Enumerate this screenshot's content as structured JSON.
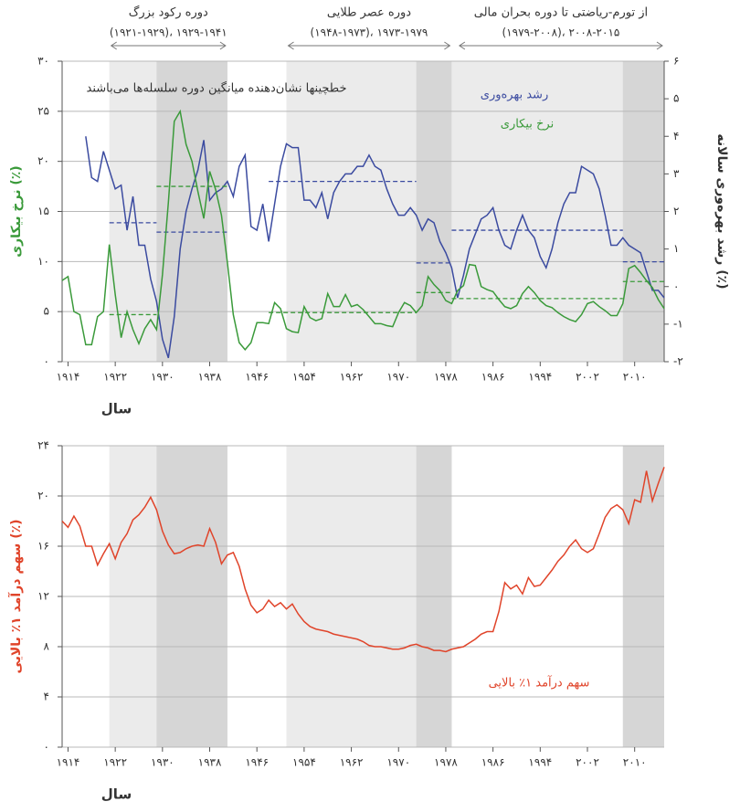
{
  "chart_data": [
    {
      "type": "line",
      "xlim": [
        1913,
        2015
      ],
      "ylim": [
        0,
        30
      ],
      "y2lim": [
        -2,
        6
      ],
      "grid": true,
      "xlabel": "سال",
      "ylabel": "نرخ بیکاری (٪)",
      "y2label": "رشد بهره‌وری سالانه (٪)",
      "note": "خطچینها نشان‌دهنده میانگین دوره سلسله‌ها می‌باشند",
      "xticks": [
        {
          "value": 1914,
          "label": "۱۹۱۴"
        },
        {
          "value": 1922,
          "label": "۱۹۲۲"
        },
        {
          "value": 1930,
          "label": "۱۹۳۰"
        },
        {
          "value": 1938,
          "label": "۱۹۳۸"
        },
        {
          "value": 1946,
          "label": "۱۹۴۶"
        },
        {
          "value": 1954,
          "label": "۱۹۵۴"
        },
        {
          "value": 1962,
          "label": "۱۹۶۲"
        },
        {
          "value": 1970,
          "label": "۱۹۷۰"
        },
        {
          "value": 1978,
          "label": "۱۹۷۸"
        },
        {
          "value": 1986,
          "label": "۱۹۸۶"
        },
        {
          "value": 1994,
          "label": "۱۹۹۴"
        },
        {
          "value": 2002,
          "label": "۲۰۰۲"
        },
        {
          "value": 2010,
          "label": "۲۰۱۰"
        }
      ],
      "yticks": [
        {
          "value": 0,
          "label": "۰"
        },
        {
          "value": 5,
          "label": "۵"
        },
        {
          "value": 10,
          "label": "۱۰"
        },
        {
          "value": 15,
          "label": "۱۵"
        },
        {
          "value": 20,
          "label": "۲۰"
        },
        {
          "value": 25,
          "label": "۲۵"
        },
        {
          "value": 30,
          "label": "۳۰"
        }
      ],
      "y2ticks": [
        {
          "value": -2,
          "label": "-۲"
        },
        {
          "value": -1,
          "label": "-۱"
        },
        {
          "value": 0,
          "label": "۰"
        },
        {
          "value": 1,
          "label": "۱"
        },
        {
          "value": 2,
          "label": "۲"
        },
        {
          "value": 3,
          "label": "۳"
        },
        {
          "value": 4,
          "label": "۴"
        },
        {
          "value": 5,
          "label": "۵"
        },
        {
          "value": 6,
          "label": "۶"
        }
      ],
      "periods": [
        {
          "label": "دوره رکود بزرگ",
          "sublabel": "(۱۹۲۱-۱۹۲۹)، ۱۹۲۹-۱۹۴۱",
          "start": 1921,
          "end": 1941
        },
        {
          "label": "دوره عصر طلایی",
          "sublabel": "(۱۹۴۸-۱۹۷۳)، ۱۹۷۳-۱۹۷۹",
          "start": 1951,
          "end": 1979
        },
        {
          "label": "از تورم-ریاضتی تا دوره بحران مالی",
          "sublabel": "(۱۹۷۹-۲۰۰۸)، ۲۰۰۸-۲۰۱۵",
          "start": 1980,
          "end": 2015
        }
      ],
      "shading": [
        {
          "start": 1921,
          "end": 1941,
          "color": "#ebebeb"
        },
        {
          "start": 1929,
          "end": 1941,
          "color": "#d6d6d6"
        },
        {
          "start": 1951,
          "end": 1979,
          "color": "#ebebeb"
        },
        {
          "start": 1973,
          "end": 1979,
          "color": "#d6d6d6"
        },
        {
          "start": 1979,
          "end": 2015,
          "color": "#ebebeb"
        },
        {
          "start": 2008,
          "end": 2015,
          "color": "#d6d6d6"
        }
      ],
      "x": [
        1913,
        1914,
        1915,
        1916,
        1917,
        1918,
        1919,
        1920,
        1921,
        1922,
        1923,
        1924,
        1925,
        1926,
        1927,
        1928,
        1929,
        1930,
        1931,
        1932,
        1933,
        1934,
        1935,
        1936,
        1937,
        1938,
        1939,
        1940,
        1941,
        1942,
        1943,
        1944,
        1945,
        1946,
        1947,
        1948,
        1949,
        1950,
        1951,
        1952,
        1953,
        1954,
        1955,
        1956,
        1957,
        1958,
        1959,
        1960,
        1961,
        1962,
        1963,
        1964,
        1965,
        1966,
        1967,
        1968,
        1969,
        1970,
        1971,
        1972,
        1973,
        1974,
        1975,
        1976,
        1977,
        1978,
        1979,
        1980,
        1981,
        1982,
        1983,
        1984,
        1985,
        1986,
        1987,
        1988,
        1989,
        1990,
        1991,
        1992,
        1993,
        1994,
        1995,
        1996,
        1997,
        1998,
        1999,
        2000,
        2001,
        2002,
        2003,
        2004,
        2005,
        2006,
        2007,
        2008,
        2009,
        2010,
        2011,
        2012,
        2013,
        2014,
        2015
      ],
      "series": [
        {
          "name": "رشد بهره‌وری",
          "color": "#3b4ba0",
          "axis": "y2",
          "values": [
            null,
            null,
            null,
            null,
            4.0,
            2.9,
            2.8,
            3.6,
            3.1,
            2.6,
            2.7,
            1.5,
            2.4,
            1.1,
            1.1,
            0.2,
            -0.4,
            -1.4,
            -1.9,
            -0.8,
            1.0,
            2.0,
            2.6,
            3.1,
            3.9,
            2.3,
            2.5,
            2.6,
            2.8,
            2.4,
            3.2,
            3.5,
            1.6,
            1.5,
            2.2,
            1.2,
            2.2,
            3.2,
            3.8,
            3.7,
            3.7,
            2.3,
            2.3,
            2.1,
            2.5,
            1.8,
            2.5,
            2.8,
            3.0,
            3.0,
            3.2,
            3.2,
            3.5,
            3.2,
            3.1,
            2.6,
            2.2,
            1.9,
            1.9,
            2.1,
            1.9,
            1.5,
            1.8,
            1.7,
            1.2,
            0.9,
            0.5,
            -0.3,
            0.3,
            1.0,
            1.4,
            1.8,
            1.9,
            2.1,
            1.5,
            1.1,
            1.0,
            1.5,
            1.9,
            1.5,
            1.3,
            0.8,
            0.5,
            1.0,
            1.7,
            2.2,
            2.5,
            2.5,
            3.2,
            3.1,
            3.0,
            2.6,
            1.9,
            1.1,
            1.1,
            1.3,
            1.1,
            1.0,
            0.9,
            0.4,
            -0.1,
            -0.1,
            -0.3
          ],
          "averages": [
            {
              "start": 1921,
              "end": 1929,
              "value": 1.7
            },
            {
              "start": 1929,
              "end": 1941,
              "value": 1.45
            },
            {
              "start": 1948,
              "end": 1973,
              "value": 2.8
            },
            {
              "start": 1973,
              "end": 1979,
              "value": 0.63
            },
            {
              "start": 1979,
              "end": 2008,
              "value": 1.5
            },
            {
              "start": 2008,
              "end": 2015,
              "value": 0.66
            }
          ]
        },
        {
          "name": "نرخ بیکاری",
          "color": "#3a9a3a",
          "values": [
            8.1,
            8.5,
            5,
            4.7,
            1.7,
            1.7,
            4.5,
            5,
            11.7,
            6.7,
            2.4,
            5,
            3.2,
            1.8,
            3.3,
            4.2,
            3.2,
            8.7,
            15.9,
            24,
            25,
            21.7,
            20,
            17,
            14.3,
            19,
            17.2,
            14.6,
            9.9,
            4.7,
            1.9,
            1.2,
            1.9,
            3.9,
            3.9,
            3.8,
            5.9,
            5.3,
            3.3,
            3.0,
            2.9,
            5.5,
            4.4,
            4.1,
            4.3,
            6.8,
            5.5,
            5.5,
            6.7,
            5.5,
            5.7,
            5.2,
            4.5,
            3.8,
            3.8,
            3.6,
            3.5,
            4.9,
            5.9,
            5.6,
            4.9,
            5.6,
            8.5,
            7.7,
            7.1,
            6.1,
            5.8,
            7.1,
            7.6,
            9.7,
            9.6,
            7.5,
            7.2,
            7.0,
            6.2,
            5.5,
            5.3,
            5.6,
            6.8,
            7.5,
            6.9,
            6.1,
            5.6,
            5.4,
            4.9,
            4.5,
            4.2,
            4.0,
            4.7,
            5.8,
            6.0,
            5.5,
            5.1,
            4.6,
            4.6,
            5.8,
            9.3,
            9.6,
            8.9,
            8.1,
            7.4,
            6.2,
            5.3
          ],
          "averages": [
            {
              "start": 1921,
              "end": 1929,
              "value": 4.7
            },
            {
              "start": 1929,
              "end": 1941,
              "value": 17.5
            },
            {
              "start": 1948,
              "end": 1973,
              "value": 4.9
            },
            {
              "start": 1973,
              "end": 1979,
              "value": 6.9
            },
            {
              "start": 1979,
              "end": 2008,
              "value": 6.3
            },
            {
              "start": 2008,
              "end": 2015,
              "value": 8.0
            }
          ]
        }
      ]
    },
    {
      "type": "line",
      "xlim": [
        1913,
        2015
      ],
      "ylim": [
        0,
        24
      ],
      "grid": true,
      "xlabel": "سال",
      "ylabel": "سهم درآمد ۱٪ بالایی (٪)",
      "xticks": [
        {
          "value": 1914,
          "label": "۱۹۱۴"
        },
        {
          "value": 1922,
          "label": "۱۹۲۲"
        },
        {
          "value": 1930,
          "label": "۱۹۳۰"
        },
        {
          "value": 1938,
          "label": "۱۹۳۸"
        },
        {
          "value": 1946,
          "label": "۱۹۴۶"
        },
        {
          "value": 1954,
          "label": "۱۹۵۴"
        },
        {
          "value": 1962,
          "label": "۱۹۶۲"
        },
        {
          "value": 1970,
          "label": "۱۹۷۰"
        },
        {
          "value": 1978,
          "label": "۱۹۷۸"
        },
        {
          "value": 1986,
          "label": "۱۹۸۶"
        },
        {
          "value": 1994,
          "label": "۱۹۹۴"
        },
        {
          "value": 2002,
          "label": "۲۰۰۲"
        },
        {
          "value": 2010,
          "label": "۲۰۱۰"
        }
      ],
      "yticks": [
        {
          "value": 0,
          "label": "۰"
        },
        {
          "value": 4,
          "label": "۴"
        },
        {
          "value": 8,
          "label": "۸"
        },
        {
          "value": 12,
          "label": "۱۲"
        },
        {
          "value": 16,
          "label": "۱۶"
        },
        {
          "value": 20,
          "label": "۲۰"
        },
        {
          "value": 24,
          "label": "۲۴"
        }
      ],
      "shading": [
        {
          "start": 1921,
          "end": 1941,
          "color": "#ebebeb"
        },
        {
          "start": 1929,
          "end": 1941,
          "color": "#d6d6d6"
        },
        {
          "start": 1951,
          "end": 1979,
          "color": "#ebebeb"
        },
        {
          "start": 1973,
          "end": 1979,
          "color": "#d6d6d6"
        },
        {
          "start": 2008,
          "end": 2015,
          "color": "#d6d6d6"
        }
      ],
      "x": [
        1913,
        1914,
        1915,
        1916,
        1917,
        1918,
        1919,
        1920,
        1921,
        1922,
        1923,
        1924,
        1925,
        1926,
        1927,
        1928,
        1929,
        1930,
        1931,
        1932,
        1933,
        1934,
        1935,
        1936,
        1937,
        1938,
        1939,
        1940,
        1941,
        1942,
        1943,
        1944,
        1945,
        1946,
        1947,
        1948,
        1949,
        1950,
        1951,
        1952,
        1953,
        1954,
        1955,
        1956,
        1957,
        1958,
        1959,
        1960,
        1961,
        1962,
        1963,
        1964,
        1965,
        1966,
        1967,
        1968,
        1969,
        1970,
        1971,
        1972,
        1973,
        1974,
        1975,
        1976,
        1977,
        1978,
        1979,
        1980,
        1981,
        1982,
        1983,
        1984,
        1985,
        1986,
        1987,
        1988,
        1989,
        1990,
        1991,
        1992,
        1993,
        1994,
        1995,
        1996,
        1997,
        1998,
        1999,
        2000,
        2001,
        2002,
        2003,
        2004,
        2005,
        2006,
        2007,
        2008,
        2009,
        2010,
        2011,
        2012,
        2013,
        2014,
        2015
      ],
      "series": [
        {
          "name": "سهم درآمد ۱٪ بالایی",
          "color": "#e0442a",
          "values": [
            18.0,
            17.5,
            18.4,
            17.6,
            16.0,
            16.0,
            14.5,
            15.4,
            16.2,
            15.0,
            16.3,
            17.0,
            18.1,
            18.5,
            19.1,
            19.9,
            18.9,
            17.2,
            16.1,
            15.4,
            15.5,
            15.8,
            16.0,
            16.1,
            16.0,
            17.4,
            16.3,
            14.6,
            15.3,
            15.5,
            14.4,
            12.6,
            11.3,
            10.7,
            11.0,
            11.7,
            11.2,
            11.5,
            11.0,
            11.4,
            10.6,
            10.0,
            9.6,
            9.4,
            9.3,
            9.2,
            9.0,
            8.9,
            8.8,
            8.7,
            8.6,
            8.4,
            8.1,
            8.0,
            8.0,
            7.9,
            7.8,
            7.8,
            7.9,
            8.1,
            8.2,
            8.0,
            7.9,
            7.7,
            7.7,
            7.6,
            7.8,
            7.9,
            8.0,
            8.3,
            8.6,
            9.0,
            9.2,
            9.2,
            10.8,
            13.1,
            12.6,
            12.9,
            12.2,
            13.5,
            12.8,
            12.9,
            13.5,
            14.1,
            14.8,
            15.3,
            16.0,
            16.5,
            15.8,
            15.5,
            15.8,
            17.0,
            18.3,
            19.0,
            19.3,
            18.9,
            17.8,
            19.7,
            19.5,
            22.0,
            19.6,
            21.0,
            22.3
          ]
        }
      ]
    }
  ]
}
